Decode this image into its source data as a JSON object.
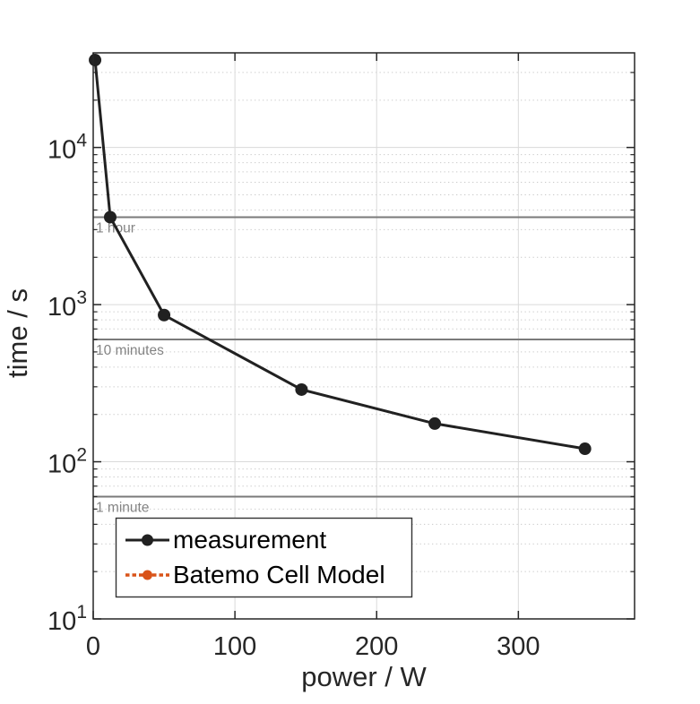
{
  "figure": {
    "background": "#ffffff",
    "plot_box_color": "#262626"
  },
  "chart_data": {
    "type": "line",
    "title": "",
    "xlabel": "power / W",
    "ylabel": "time / s",
    "xscale": "linear",
    "yscale": "log",
    "xlim": [
      0,
      382
    ],
    "ylim": [
      10,
      40000
    ],
    "x_ticks": [
      0,
      100,
      200,
      300
    ],
    "y_tick_exponents": [
      1,
      2,
      3,
      4
    ],
    "grid": "x major vertical solid; y major solid + y minor dotted horizontal",
    "legend_position": "inside bottom-left",
    "series": [
      {
        "name": "measurement",
        "color": "#212121",
        "line_style": "solid",
        "marker": "filled-circle",
        "points": [
          {
            "power_w": 1.3,
            "time_s": 36000
          },
          {
            "power_w": 12,
            "time_s": 3600
          },
          {
            "power_w": 50,
            "time_s": 858
          },
          {
            "power_w": 147,
            "time_s": 288
          },
          {
            "power_w": 241,
            "time_s": 175
          },
          {
            "power_w": 347,
            "time_s": 121
          }
        ]
      },
      {
        "name": "Batemo Cell Model",
        "color": "#d95319",
        "line_style": "dotted",
        "marker": "filled-circle",
        "points": [],
        "note": "curve coincides with measurement and is not separately visible in the plot area"
      }
    ],
    "reference_lines": [
      {
        "time_s": 3600,
        "label": "1 hour"
      },
      {
        "time_s": 600,
        "label": "10 minutes"
      },
      {
        "time_s": 60,
        "label": "1 minute"
      }
    ]
  },
  "colors": {
    "reference_line": "#7a7a7a",
    "reference_text": "#848484",
    "grid_major": "#dadada",
    "grid_minor": "#c9c9c9",
    "axes": "#262626",
    "legend_edge": "#333333",
    "legend_background": "#ffffff"
  }
}
